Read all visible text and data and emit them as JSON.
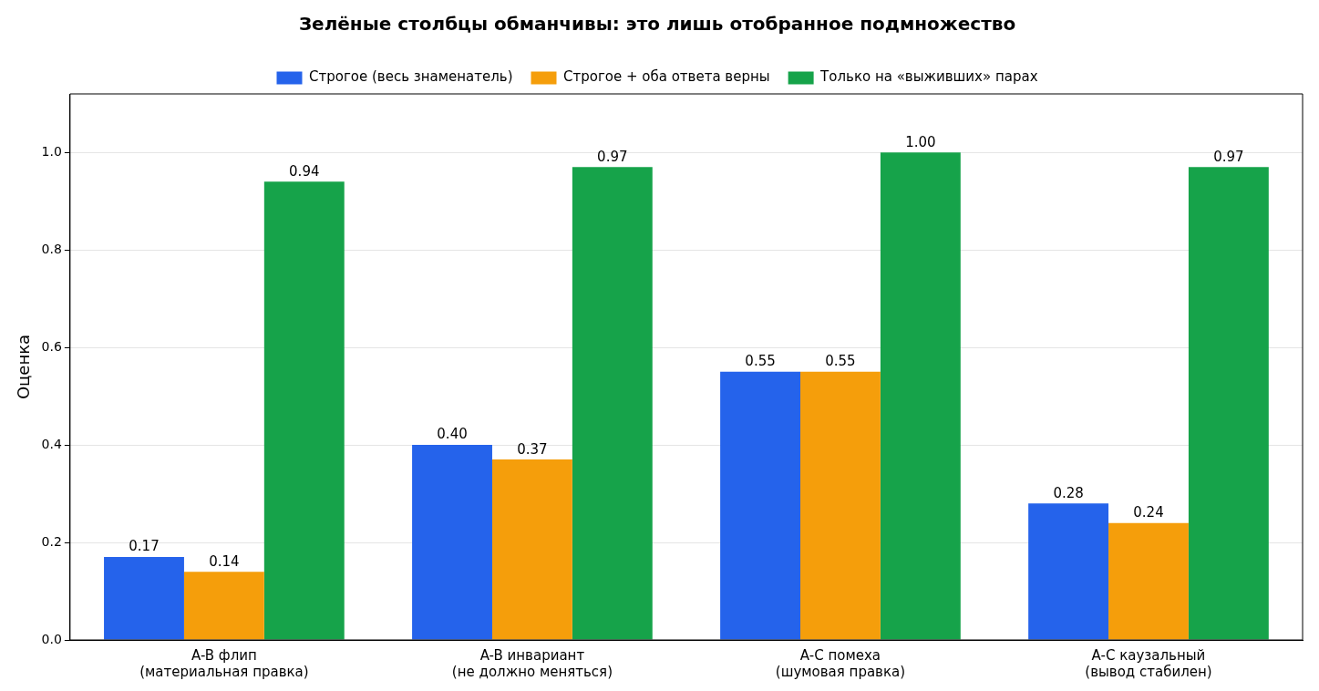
{
  "chart_data": {
    "type": "bar",
    "title": "Зелёные столбцы обманчивы: это лишь отобранное подмножество",
    "ylabel": "Оценка",
    "categories": [
      "A-B флип\n(материальная правка)",
      "A-B инвариант\n(не должно меняться)",
      "A-C помеха\n(шумовая правка)",
      "A-C каузальный\n(вывод стабилен)"
    ],
    "series": [
      {
        "name": "Строгое (весь знаменатель)",
        "color": "#2563eb",
        "values": [
          0.17,
          0.4,
          0.55,
          0.28
        ],
        "value_labels": [
          "0.17",
          "0.40",
          "0.55",
          "0.28"
        ]
      },
      {
        "name": "Строгое + оба ответа верны",
        "color": "#f59e0b",
        "values": [
          0.14,
          0.37,
          0.55,
          0.24
        ],
        "value_labels": [
          "0.14",
          "0.37",
          "0.55",
          "0.24"
        ]
      },
      {
        "name": "Только на «выживших» парах",
        "color": "#16a34a",
        "values": [
          0.94,
          0.97,
          1.0,
          0.97
        ],
        "value_labels": [
          "0.94",
          "0.97",
          "1.00",
          "0.97"
        ]
      }
    ],
    "ylim": [
      0,
      1.12
    ],
    "yticks": [
      {
        "value": 0,
        "label": "0.0"
      },
      {
        "value": 0.2,
        "label": "0.2"
      },
      {
        "value": 0.4,
        "label": "0.4"
      },
      {
        "value": 0.6,
        "label": "0.6"
      },
      {
        "value": 0.8,
        "label": "0.8"
      },
      {
        "value": 1.0,
        "label": "1.0"
      }
    ],
    "grid": "y",
    "legend": "top"
  }
}
